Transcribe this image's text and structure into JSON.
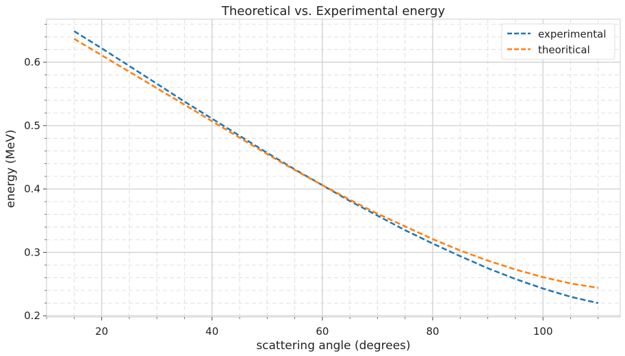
{
  "chart_data": {
    "type": "line",
    "title": "Theoretical vs. Experimental energy",
    "xlabel": "scattering angle (degrees)",
    "ylabel": "energy (MeV)",
    "xlim": [
      10,
      114
    ],
    "ylim": [
      0.198,
      0.668
    ],
    "xticks": [
      20,
      40,
      60,
      80,
      100
    ],
    "xtick_labels": [
      "20",
      "40",
      "60",
      "80",
      "100"
    ],
    "yticks": [
      0.2,
      0.3,
      0.4,
      0.5,
      0.6
    ],
    "ytick_labels": [
      "0.2",
      "0.3",
      "0.4",
      "0.5",
      "0.6"
    ],
    "grid": true,
    "legend_position": "top-right",
    "x": [
      15,
      20,
      25,
      30,
      35,
      40,
      45,
      50,
      55,
      60,
      65,
      70,
      75,
      80,
      85,
      90,
      95,
      100,
      105,
      110
    ],
    "series": [
      {
        "name": "experimental",
        "color": "#1f77b4",
        "line_style": "dashed",
        "values": [
          0.649,
          0.622,
          0.594,
          0.566,
          0.538,
          0.511,
          0.484,
          0.457,
          0.431,
          0.406,
          0.381,
          0.358,
          0.335,
          0.314,
          0.294,
          0.275,
          0.258,
          0.243,
          0.23,
          0.22
        ]
      },
      {
        "name": "theoritical",
        "color": "#ff7f0e",
        "line_style": "dashed",
        "values": [
          0.637,
          0.611,
          0.585,
          0.559,
          0.533,
          0.507,
          0.481,
          0.455,
          0.43,
          0.406,
          0.383,
          0.361,
          0.341,
          0.321,
          0.303,
          0.287,
          0.273,
          0.261,
          0.251,
          0.244
        ]
      }
    ]
  }
}
